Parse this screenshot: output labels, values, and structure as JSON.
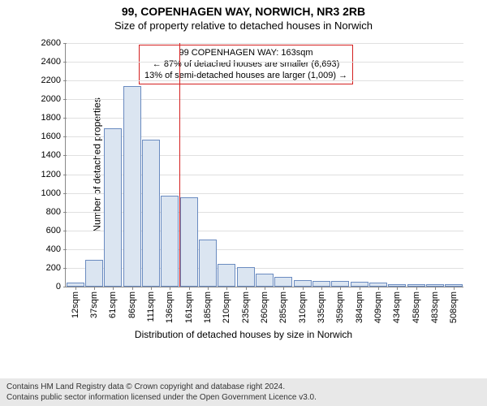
{
  "title_main": "99, COPENHAGEN WAY, NORWICH, NR3 2RB",
  "title_sub": "Size of property relative to detached houses in Norwich",
  "ylabel": "Number of detached properties",
  "xlabel": "Distribution of detached houses by size in Norwich",
  "footer_line1": "Contains HM Land Registry data © Crown copyright and database right 2024.",
  "footer_line2": "Contains public sector information licensed under the Open Government Licence v3.0.",
  "annotation": {
    "line1": "99 COPENHAGEN WAY: 163sqm",
    "line2": "← 87% of detached houses are smaller (6,693)",
    "line3": "13% of semi-detached houses are larger (1,009) →"
  },
  "chart": {
    "type": "histogram",
    "ylim": [
      0,
      2600
    ],
    "ytick_step": 200,
    "background_color": "#ffffff",
    "grid_color": "#e0e0e0",
    "axis_color": "#888888",
    "bar_fill": "#dbe5f1",
    "bar_border": "#6a8bc0",
    "refline_color": "#d42020",
    "refline_x_index_after": 6,
    "x_labels": [
      "12sqm",
      "37sqm",
      "61sqm",
      "86sqm",
      "111sqm",
      "136sqm",
      "161sqm",
      "185sqm",
      "210sqm",
      "235sqm",
      "260sqm",
      "285sqm",
      "310sqm",
      "335sqm",
      "359sqm",
      "384sqm",
      "409sqm",
      "434sqm",
      "458sqm",
      "483sqm",
      "508sqm"
    ],
    "values": [
      40,
      290,
      1690,
      2140,
      1570,
      970,
      950,
      500,
      240,
      210,
      140,
      100,
      70,
      60,
      60,
      50,
      40,
      30,
      30,
      30,
      30
    ]
  }
}
